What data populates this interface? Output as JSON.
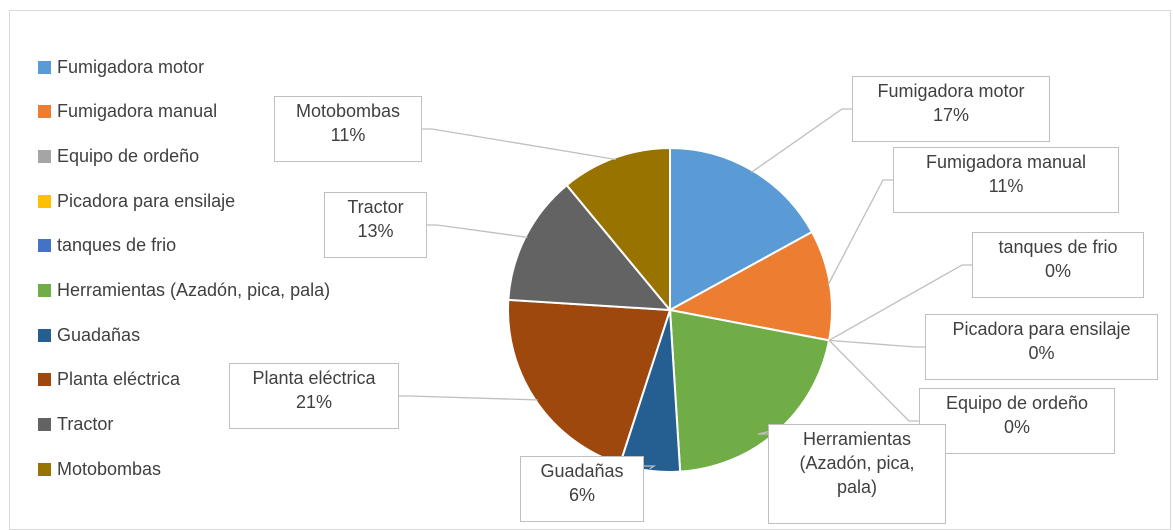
{
  "chart_data": {
    "type": "pie",
    "slices": [
      {
        "label": "Fumigadora motor",
        "value": 17,
        "pct_label": "17%",
        "color": "#5b9bd5"
      },
      {
        "label": "Fumigadora manual",
        "value": 11,
        "pct_label": "11%",
        "color": "#ed7d31"
      },
      {
        "label": "Equipo de ordeño",
        "value": 0,
        "pct_label": "0%",
        "color": "#a5a5a5"
      },
      {
        "label": "Picadora para ensilaje",
        "value": 0,
        "pct_label": "0%",
        "color": "#ffc000"
      },
      {
        "label": "tanques de frio",
        "value": 0,
        "pct_label": "0%",
        "color": "#4472c4"
      },
      {
        "label": "Herramientas (Azadón, pica, pala)",
        "value": 21,
        "pct_label": "21%",
        "color": "#70ad47"
      },
      {
        "label": "Guadañas",
        "value": 6,
        "pct_label": "6%",
        "color": "#255e91"
      },
      {
        "label": "Planta eléctrica",
        "value": 21,
        "pct_label": "21%",
        "color": "#9e480e"
      },
      {
        "label": "Tractor",
        "value": 13,
        "pct_label": "13%",
        "color": "#636363"
      },
      {
        "label": "Motobombas",
        "value": 11,
        "pct_label": "11%",
        "color": "#997300"
      }
    ],
    "legend_position": "left"
  },
  "callouts": [
    {
      "lines": [
        "Fumigadora motor",
        "17%"
      ]
    },
    {
      "lines": [
        "Fumigadora manual",
        "11%"
      ]
    },
    {
      "lines": [
        "tanques de frio",
        "0%"
      ]
    },
    {
      "lines": [
        "Picadora para ensilaje",
        "0%"
      ]
    },
    {
      "lines": [
        "Equipo de ordeño",
        "0%"
      ]
    },
    {
      "lines": [
        "Herramientas",
        "(Azadón, pica,",
        "pala)"
      ]
    },
    {
      "lines": [
        "Guadañas",
        "6%"
      ]
    },
    {
      "lines": [
        "Planta eléctrica",
        "21%"
      ]
    },
    {
      "lines": [
        "Tractor",
        "13%"
      ]
    },
    {
      "lines": [
        "Motobombas",
        "11%"
      ]
    }
  ]
}
